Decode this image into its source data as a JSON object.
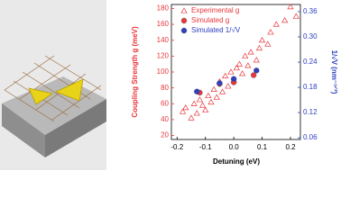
{
  "chart_data": {
    "type": "scatter",
    "xlabel": "Detuning (eV)",
    "ylabel": "Coupling Strength g (meV)",
    "y2label": "1/√V (nm⁻³ᐟ²)",
    "y_axis_color": "#e8383d",
    "y2_axis_color": "#2e3fbf",
    "xlim": [
      -0.22,
      0.235
    ],
    "xticks": [
      -0.2,
      -0.1,
      {
        "value": 0,
        "label": "0.0"
      },
      0.1,
      0.2
    ],
    "ylim": [
      15,
      185
    ],
    "yticks": [
      20,
      40,
      60,
      80,
      100,
      120,
      140,
      160,
      180
    ],
    "y2lim": [
      0.056,
      0.377
    ],
    "y2ticks": [
      0.06,
      0.12,
      0.18,
      0.24,
      {
        "value": 0.3,
        "label": "0.30"
      },
      0.36
    ],
    "legend": "upper left",
    "series": [
      {
        "name": "Experimental g",
        "color": "#e8383d",
        "marker": "open-triangle",
        "x": [
          -0.18,
          -0.17,
          -0.15,
          -0.14,
          -0.13,
          -0.12,
          -0.11,
          -0.1,
          -0.09,
          -0.08,
          -0.07,
          -0.06,
          -0.05,
          -0.04,
          -0.03,
          -0.02,
          -0.01,
          0.0,
          0.01,
          0.02,
          0.03,
          0.04,
          0.05,
          0.06,
          0.08,
          0.09,
          0.1,
          0.12,
          0.13,
          0.15,
          0.18,
          0.2,
          0.22
        ],
        "values": [
          50,
          55,
          42,
          60,
          48,
          65,
          58,
          52,
          70,
          62,
          78,
          68,
          88,
          75,
          95,
          82,
          100,
          90,
          105,
          110,
          98,
          120,
          108,
          125,
          115,
          130,
          140,
          135,
          150,
          160,
          165,
          182,
          170
        ]
      },
      {
        "name": "Simulated g",
        "color": "#e8383d",
        "marker": "circle",
        "x": [
          -0.12,
          -0.05,
          0.0,
          0.07
        ],
        "values": [
          74,
          85,
          87,
          96
        ]
      },
      {
        "name": "Simulated 1/√V",
        "color": "#2e3fbf",
        "marker": "circle",
        "axis": "y2",
        "x": [
          -0.13,
          -0.05,
          0.0,
          0.08
        ],
        "values": [
          0.17,
          0.19,
          0.2,
          0.22
        ]
      }
    ]
  }
}
